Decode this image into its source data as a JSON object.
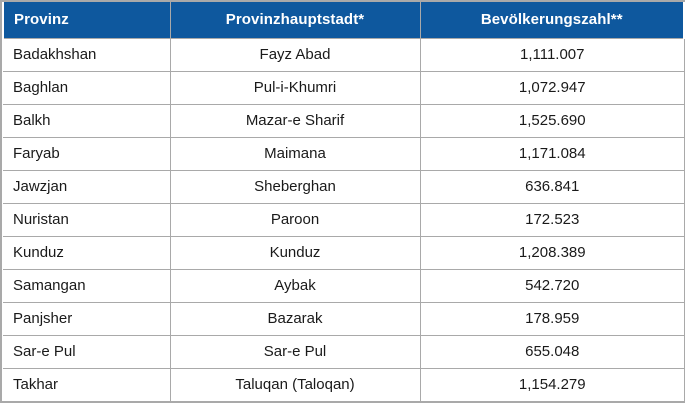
{
  "chart_data": {
    "type": "table",
    "columns": [
      "Provinz",
      "Provinzhauptstadt*",
      "Bevölkerungszahl**"
    ],
    "rows": [
      [
        "Badakhshan",
        "Fayz Abad",
        "1,111.007"
      ],
      [
        "Baghlan",
        "Pul-i-Khumri",
        "1,072.947"
      ],
      [
        "Balkh",
        "Mazar-e Sharif",
        "1,525.690"
      ],
      [
        "Faryab",
        "Maimana",
        "1,171.084"
      ],
      [
        "Jawzjan",
        "Sheberghan",
        "636.841"
      ],
      [
        "Nuristan",
        "Paroon",
        "172.523"
      ],
      [
        "Kunduz",
        "Kunduz",
        "1,208.389"
      ],
      [
        "Samangan",
        "Aybak",
        "542.720"
      ],
      [
        "Panjsher",
        "Bazarak",
        "178.959"
      ],
      [
        "Sar-e Pul",
        "Sar-e Pul",
        "655.048"
      ],
      [
        "Takhar",
        "Taluqan (Taloqan)",
        "1,154.279"
      ]
    ],
    "layout": {
      "header_align": [
        "left",
        "center",
        "center"
      ],
      "body_align": [
        "left",
        "center",
        "center"
      ]
    }
  },
  "colors": {
    "header_bg": "#0e589e",
    "header_text": "#ffffff",
    "border": "#a9a9a9",
    "body_text": "#1a1a1a",
    "background": "#ffffff"
  }
}
